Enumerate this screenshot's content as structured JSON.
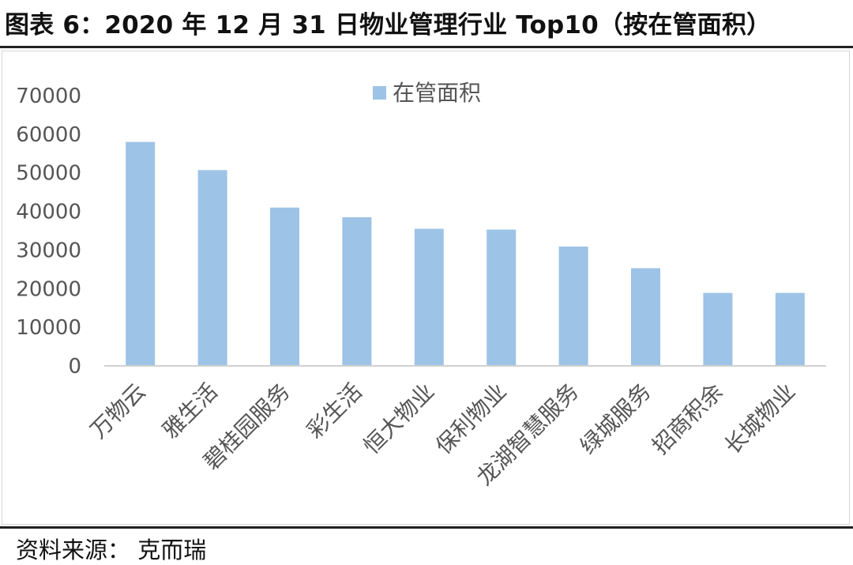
{
  "header": {
    "title": "图表 6：2020 年 12 月 31 日物业管理行业 Top10（按在管面积）"
  },
  "footer": {
    "source": "资料来源：  克而瑞"
  },
  "chart_data": {
    "type": "bar",
    "title": "",
    "xlabel": "",
    "ylabel": "",
    "legend": {
      "position": "top-center"
    },
    "grid": false,
    "ylim": [
      0,
      70000
    ],
    "yticks": [
      0,
      10000,
      20000,
      30000,
      40000,
      50000,
      60000,
      70000
    ],
    "bar_color": "#9dc3e6",
    "categories": [
      "万物云",
      "雅生活",
      "碧桂园服务",
      "彩生活",
      "恒大物业",
      "保利物业",
      "龙湖智慧服务",
      "绿城服务",
      "招商积余",
      "长城物业"
    ],
    "series": [
      {
        "name": "在管面积",
        "values": [
          58000,
          50700,
          41000,
          38500,
          35500,
          35300,
          30900,
          25300,
          18900,
          18900
        ]
      }
    ]
  }
}
